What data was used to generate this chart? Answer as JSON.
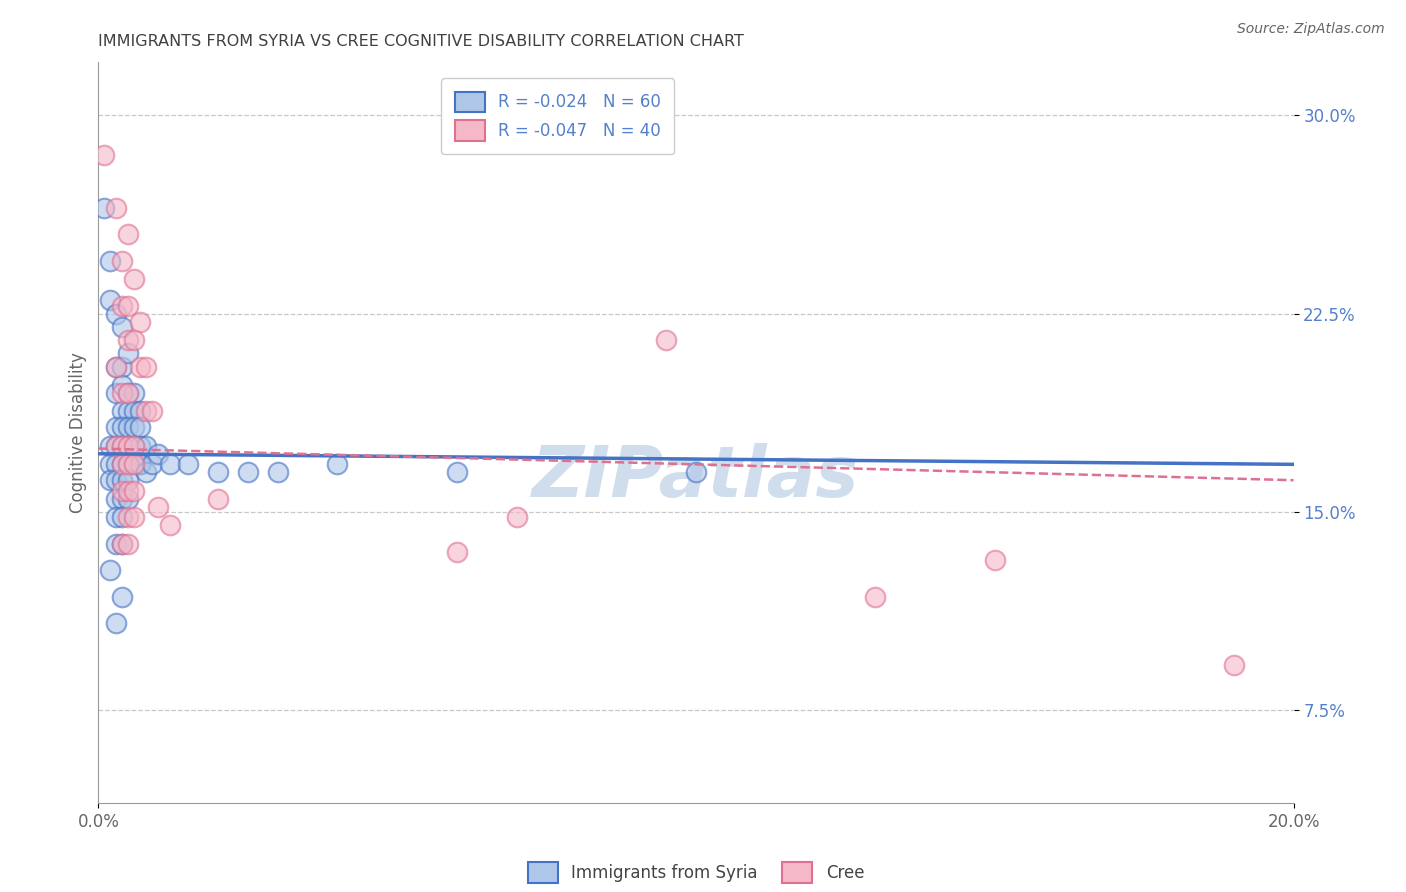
{
  "title": "IMMIGRANTS FROM SYRIA VS CREE COGNITIVE DISABILITY CORRELATION CHART",
  "source": "Source: ZipAtlas.com",
  "ylabel": "Cognitive Disability",
  "xlim": [
    0.0,
    0.2
  ],
  "ylim": [
    0.04,
    0.32
  ],
  "ytick_values": [
    0.075,
    0.15,
    0.225,
    0.3
  ],
  "ytick_labels": [
    "7.5%",
    "15.0%",
    "22.5%",
    "30.0%"
  ],
  "xtick_values": [
    0.0,
    0.2
  ],
  "xtick_labels": [
    "0.0%",
    "20.0%"
  ],
  "legend1_label": "R = -0.024   N = 60",
  "legend2_label": "R = -0.047   N = 40",
  "legend_bottom_label1": "Immigrants from Syria",
  "legend_bottom_label2": "Cree",
  "color_blue": "#aec6e8",
  "color_pink": "#f4b8c8",
  "line_blue": "#4472c4",
  "line_pink": "#e07090",
  "background_color": "#ffffff",
  "grid_color": "#c8c8c8",
  "title_color": "#404040",
  "tick_color": "#5580cc",
  "watermark_color": "#c8d8ea",
  "syria_points": [
    [
      0.001,
      0.265
    ],
    [
      0.002,
      0.245
    ],
    [
      0.002,
      0.23
    ],
    [
      0.003,
      0.225
    ],
    [
      0.004,
      0.22
    ],
    [
      0.003,
      0.205
    ],
    [
      0.004,
      0.205
    ],
    [
      0.005,
      0.21
    ],
    [
      0.003,
      0.195
    ],
    [
      0.004,
      0.198
    ],
    [
      0.005,
      0.195
    ],
    [
      0.006,
      0.195
    ],
    [
      0.004,
      0.188
    ],
    [
      0.005,
      0.188
    ],
    [
      0.006,
      0.188
    ],
    [
      0.007,
      0.188
    ],
    [
      0.003,
      0.182
    ],
    [
      0.004,
      0.182
    ],
    [
      0.005,
      0.182
    ],
    [
      0.006,
      0.182
    ],
    [
      0.007,
      0.182
    ],
    [
      0.002,
      0.175
    ],
    [
      0.003,
      0.175
    ],
    [
      0.004,
      0.175
    ],
    [
      0.005,
      0.175
    ],
    [
      0.006,
      0.175
    ],
    [
      0.007,
      0.175
    ],
    [
      0.008,
      0.175
    ],
    [
      0.002,
      0.168
    ],
    [
      0.003,
      0.168
    ],
    [
      0.004,
      0.168
    ],
    [
      0.005,
      0.168
    ],
    [
      0.006,
      0.168
    ],
    [
      0.007,
      0.168
    ],
    [
      0.002,
      0.162
    ],
    [
      0.003,
      0.162
    ],
    [
      0.004,
      0.162
    ],
    [
      0.005,
      0.162
    ],
    [
      0.003,
      0.155
    ],
    [
      0.004,
      0.155
    ],
    [
      0.005,
      0.155
    ],
    [
      0.003,
      0.148
    ],
    [
      0.004,
      0.148
    ],
    [
      0.003,
      0.138
    ],
    [
      0.004,
      0.138
    ],
    [
      0.002,
      0.128
    ],
    [
      0.004,
      0.118
    ],
    [
      0.003,
      0.108
    ],
    [
      0.007,
      0.168
    ],
    [
      0.008,
      0.165
    ],
    [
      0.009,
      0.168
    ],
    [
      0.01,
      0.172
    ],
    [
      0.012,
      0.168
    ],
    [
      0.015,
      0.168
    ],
    [
      0.02,
      0.165
    ],
    [
      0.025,
      0.165
    ],
    [
      0.03,
      0.165
    ],
    [
      0.04,
      0.168
    ],
    [
      0.06,
      0.165
    ],
    [
      0.1,
      0.165
    ]
  ],
  "cree_points": [
    [
      0.001,
      0.285
    ],
    [
      0.003,
      0.265
    ],
    [
      0.005,
      0.255
    ],
    [
      0.004,
      0.245
    ],
    [
      0.006,
      0.238
    ],
    [
      0.004,
      0.228
    ],
    [
      0.005,
      0.228
    ],
    [
      0.007,
      0.222
    ],
    [
      0.005,
      0.215
    ],
    [
      0.006,
      0.215
    ],
    [
      0.003,
      0.205
    ],
    [
      0.007,
      0.205
    ],
    [
      0.008,
      0.205
    ],
    [
      0.004,
      0.195
    ],
    [
      0.005,
      0.195
    ],
    [
      0.008,
      0.188
    ],
    [
      0.009,
      0.188
    ],
    [
      0.003,
      0.175
    ],
    [
      0.004,
      0.175
    ],
    [
      0.005,
      0.175
    ],
    [
      0.006,
      0.175
    ],
    [
      0.004,
      0.168
    ],
    [
      0.005,
      0.168
    ],
    [
      0.006,
      0.168
    ],
    [
      0.004,
      0.158
    ],
    [
      0.005,
      0.158
    ],
    [
      0.006,
      0.158
    ],
    [
      0.005,
      0.148
    ],
    [
      0.006,
      0.148
    ],
    [
      0.004,
      0.138
    ],
    [
      0.005,
      0.138
    ],
    [
      0.01,
      0.152
    ],
    [
      0.012,
      0.145
    ],
    [
      0.02,
      0.155
    ],
    [
      0.06,
      0.135
    ],
    [
      0.13,
      0.118
    ],
    [
      0.19,
      0.092
    ],
    [
      0.15,
      0.132
    ],
    [
      0.095,
      0.215
    ],
    [
      0.07,
      0.148
    ]
  ]
}
